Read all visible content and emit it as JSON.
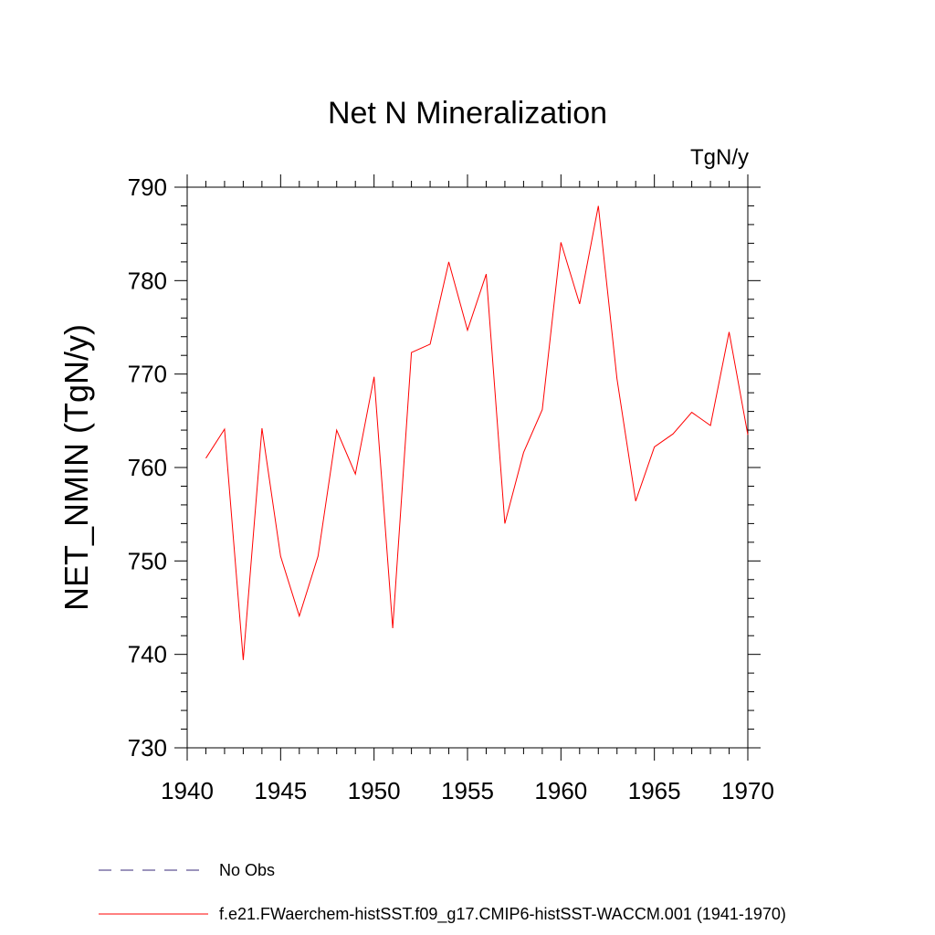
{
  "chart_data": {
    "type": "line",
    "title": "Net N Mineralization",
    "units": "TgN/y",
    "xlabel": "",
    "ylabel": "NET_NMIN  (TgN/y)",
    "xlim": [
      1940,
      1970
    ],
    "ylim": [
      730,
      790
    ],
    "xticks": [
      1940,
      1945,
      1950,
      1955,
      1960,
      1965,
      1970
    ],
    "yticks": [
      730,
      740,
      750,
      760,
      770,
      780,
      790
    ],
    "grid": false,
    "legend_position": "bottom",
    "series": [
      {
        "name": "f.e21.FWaerchem-histSST.f09_g17.CMIP6-histSST-WACCM.001 (1941-1970)",
        "color": "#ff0000",
        "dash": "solid",
        "x": [
          1941,
          1942,
          1943,
          1944,
          1945,
          1946,
          1947,
          1948,
          1949,
          1950,
          1951,
          1952,
          1953,
          1954,
          1955,
          1956,
          1957,
          1958,
          1959,
          1960,
          1961,
          1962,
          1963,
          1964,
          1965,
          1966,
          1967,
          1968,
          1969,
          1970
        ],
        "y": [
          761.0,
          764.1,
          739.4,
          764.2,
          750.5,
          744.1,
          750.5,
          764.0,
          759.3,
          769.7,
          742.8,
          772.3,
          773.2,
          782.0,
          774.7,
          780.7,
          754.0,
          761.6,
          766.2,
          784.1,
          777.5,
          788.0,
          769.5,
          756.4,
          762.2,
          763.6,
          765.9,
          764.5,
          774.5,
          763.5
        ]
      }
    ],
    "legend": [
      {
        "label": "No Obs",
        "color": "#3a2a7a",
        "dash": "dashed"
      },
      {
        "label": "f.e21.FWaerchem-histSST.f09_g17.CMIP6-histSST-WACCM.001 (1941-1970)",
        "color": "#ff0000",
        "dash": "solid"
      }
    ]
  }
}
